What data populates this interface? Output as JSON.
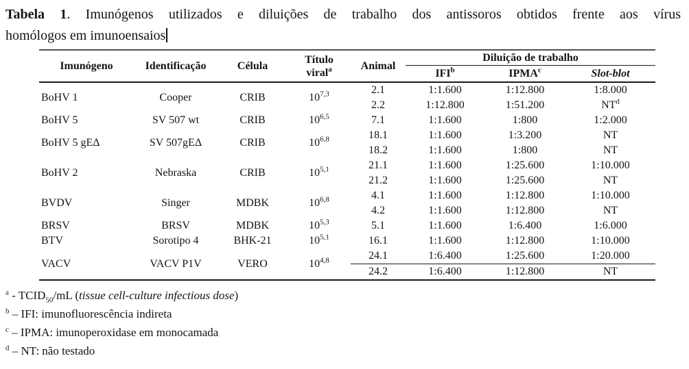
{
  "caption": {
    "label": "Tabela 1",
    "rest": ". Imunógenos utilizados e diluições de trabalho dos antissoros obtidos frente aos vírus",
    "line2": "homólogos em imunoensaios"
  },
  "table": {
    "header": {
      "immunogen": "Imunógeno",
      "identification": "Identificação",
      "cell_line": "Célula",
      "titer_line1": "Título",
      "titer_line2": "viral",
      "titer_sup": "a",
      "animal": "Animal",
      "dilution_group": "Diluição de trabalho",
      "ifi": "IFI",
      "ifi_sup": "b",
      "ipma": "IPMA",
      "ipma_sup": "c",
      "slot": "Slot-blot"
    },
    "groups": [
      {
        "immunogen": "BoHV 1",
        "identification": "Cooper",
        "cell_line": "CRIB",
        "titer_base": "10",
        "titer_exp": "7,3",
        "animals": [
          {
            "animal": "2.1",
            "ifi": "1:1.600",
            "ipma": "1:12.800",
            "slot": "1:8.000"
          },
          {
            "animal": "2.2",
            "ifi": "1:12.800",
            "ipma": "1:51.200",
            "slot": "NT",
            "slot_sup": "d"
          }
        ]
      },
      {
        "immunogen": "BoHV 5",
        "identification": "SV 507 wt",
        "cell_line": "CRIB",
        "titer_base": "10",
        "titer_exp": "6,5",
        "animals": [
          {
            "animal": "7.1",
            "ifi": "1:1.600",
            "ipma": "1:800",
            "slot": "1:2.000"
          }
        ]
      },
      {
        "immunogen": "BoHV 5 gEΔ",
        "identification": "SV 507gEΔ",
        "cell_line": "CRIB",
        "titer_base": "10",
        "titer_exp": "6,8",
        "animals": [
          {
            "animal": "18.1",
            "ifi": "1:1.600",
            "ipma": "1:3.200",
            "slot": "NT"
          },
          {
            "animal": "18.2",
            "ifi": "1:1.600",
            "ipma": "1:800",
            "slot": "NT"
          }
        ]
      },
      {
        "immunogen": "BoHV 2",
        "identification": "Nebraska",
        "cell_line": "CRIB",
        "titer_base": "10",
        "titer_exp": "5,1",
        "animals": [
          {
            "animal": "21.1",
            "ifi": "1:1.600",
            "ipma": "1:25.600",
            "slot": "1:10.000"
          },
          {
            "animal": "21.2",
            "ifi": "1:1.600",
            "ipma": "1:25.600",
            "slot": "NT"
          }
        ]
      },
      {
        "immunogen": "BVDV",
        "identification": "Singer",
        "cell_line": "MDBK",
        "titer_base": "10",
        "titer_exp": "6,8",
        "animals": [
          {
            "animal": "4.1",
            "ifi": "1:1.600",
            "ipma": "1:12.800",
            "slot": "1:10.000"
          },
          {
            "animal": "4.2",
            "ifi": "1:1.600",
            "ipma": "1:12.800",
            "slot": "NT"
          }
        ]
      },
      {
        "immunogen": "BRSV",
        "identification": "BRSV",
        "cell_line": "MDBK",
        "titer_base": "10",
        "titer_exp": "5,3",
        "animals": [
          {
            "animal": "5.1",
            "ifi": "1:1.600",
            "ipma": "1:6.400",
            "slot": "1:6.000"
          }
        ]
      },
      {
        "immunogen": "BTV",
        "identification": "Sorotipo 4",
        "cell_line": "BHK-21",
        "titer_base": "10",
        "titer_exp": "5,1",
        "animals": [
          {
            "animal": "16.1",
            "ifi": "1:1.600",
            "ipma": "1:12.800",
            "slot": "1:10.000"
          }
        ]
      },
      {
        "immunogen": "VACV",
        "identification": "VACV P1V",
        "cell_line": "VERO",
        "titer_base": "10",
        "titer_exp": "4,8",
        "divider": true,
        "animals": [
          {
            "animal": "24.1",
            "ifi": "1:6.400",
            "ipma": "1:25.600",
            "slot": "1:20.000"
          },
          {
            "animal": "24.2",
            "ifi": "1:6.400",
            "ipma": "1:12.800",
            "slot": "NT"
          }
        ]
      }
    ]
  },
  "footnotes": [
    {
      "marker": "a",
      "sep": "-",
      "pre": "TCID",
      "sub": "50",
      "mid": "/mL (",
      "italic": "tissue cell-culture infectious dose",
      "post": ")"
    },
    {
      "marker": "b",
      "sep": "–",
      "text": "IFI: imunofluorescência indireta"
    },
    {
      "marker": "c",
      "sep": "–",
      "text": "IPMA: imunoperoxidase em monocamada"
    },
    {
      "marker": "d",
      "sep": "–",
      "text": "NT: não testado"
    }
  ]
}
